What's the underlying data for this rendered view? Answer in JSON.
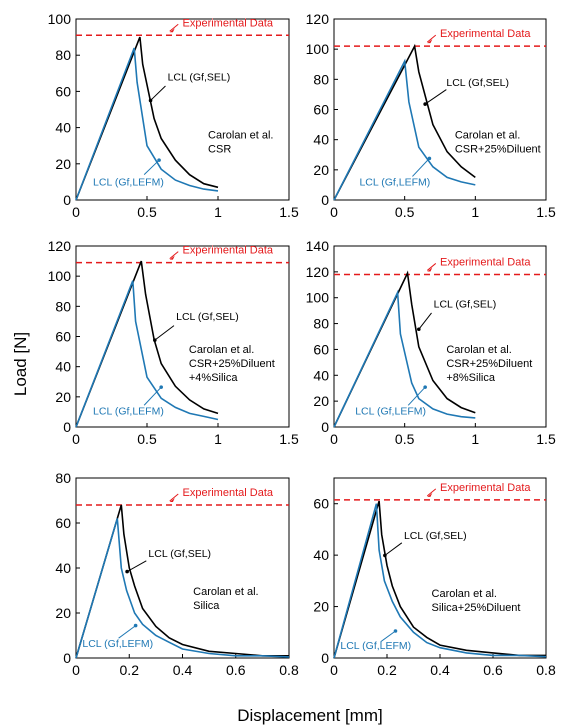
{
  "figure": {
    "ylabel": "Load [N]",
    "xlabel": "Displacement [mm]"
  },
  "colors": {
    "exp": "#e41a1c",
    "sel": "#000000",
    "lefm": "#1f78b4"
  },
  "chart_data": [
    {
      "type": "line",
      "xlim": [
        0,
        1.5
      ],
      "ylim": [
        0,
        100
      ],
      "xticks": [
        "0",
        "0.5",
        "1",
        "1.5"
      ],
      "yticks": [
        "0",
        "20",
        "40",
        "60",
        "80",
        "100"
      ],
      "experimental": {
        "label": "Experimental Data",
        "value": 91
      },
      "annotation": [
        "Carolan et al.",
        "CSR"
      ],
      "sel_label": "LCL (Gf,SEL)",
      "lefm_label": "LCL (Gf,LEFM)",
      "series": [
        {
          "key": "sel",
          "x": [
            0,
            0.45,
            0.47,
            0.55,
            0.6,
            0.7,
            0.8,
            0.9,
            1.0
          ],
          "y": [
            0,
            90,
            75,
            45,
            34,
            22,
            14,
            9,
            7
          ]
        },
        {
          "key": "lefm",
          "x": [
            0,
            0.41,
            0.43,
            0.5,
            0.6,
            0.7,
            0.8,
            0.9,
            1.0
          ],
          "y": [
            0,
            84,
            65,
            30,
            17,
            11,
            8,
            6,
            5
          ]
        }
      ]
    },
    {
      "type": "line",
      "xlim": [
        0,
        1.5
      ],
      "ylim": [
        0,
        120
      ],
      "xticks": [
        "0",
        "0.5",
        "1",
        "1.5"
      ],
      "yticks": [
        "0",
        "20",
        "40",
        "60",
        "80",
        "100",
        "120"
      ],
      "experimental": {
        "label": "Experimental Data",
        "value": 102
      },
      "annotation": [
        "Carolan et al.",
        "CSR+25%Diluent"
      ],
      "sel_label": "LCL (Gf,SEL)",
      "lefm_label": "LCL (Gf,LEFM)",
      "series": [
        {
          "key": "sel",
          "x": [
            0,
            0.57,
            0.6,
            0.7,
            0.8,
            0.9,
            1.0
          ],
          "y": [
            0,
            102,
            85,
            50,
            32,
            22,
            15
          ]
        },
        {
          "key": "lefm",
          "x": [
            0,
            0.5,
            0.53,
            0.6,
            0.7,
            0.8,
            0.9,
            1.0
          ],
          "y": [
            0,
            92,
            65,
            35,
            22,
            15,
            12,
            10
          ]
        }
      ]
    },
    {
      "type": "line",
      "xlim": [
        0,
        1.5
      ],
      "ylim": [
        0,
        120
      ],
      "xticks": [
        "0",
        "0.5",
        "1",
        "1.5"
      ],
      "yticks": [
        "0",
        "20",
        "40",
        "60",
        "80",
        "100",
        "120"
      ],
      "experimental": {
        "label": "Experimental Data",
        "value": 109
      },
      "annotation": [
        "Carolan et al.",
        "CSR+25%Diluent",
        "+4%Silica"
      ],
      "sel_label": "LCL (Gf,SEL)",
      "lefm_label": "LCL (Gf,LEFM)",
      "series": [
        {
          "key": "sel",
          "x": [
            0,
            0.46,
            0.49,
            0.55,
            0.6,
            0.7,
            0.8,
            0.9,
            1.0
          ],
          "y": [
            0,
            110,
            88,
            58,
            42,
            27,
            18,
            12,
            9
          ]
        },
        {
          "key": "lefm",
          "x": [
            0,
            0.4,
            0.42,
            0.5,
            0.6,
            0.7,
            0.8,
            0.9,
            1.0
          ],
          "y": [
            0,
            97,
            70,
            33,
            19,
            13,
            9,
            7,
            5
          ]
        }
      ]
    },
    {
      "type": "line",
      "xlim": [
        0,
        1.5
      ],
      "ylim": [
        0,
        140
      ],
      "xticks": [
        "0",
        "0.5",
        "1",
        "1.5"
      ],
      "yticks": [
        "0",
        "20",
        "40",
        "60",
        "80",
        "100",
        "120",
        "140"
      ],
      "experimental": {
        "label": "Experimental Data",
        "value": 118
      },
      "annotation": [
        "Carolan et al.",
        "CSR+25%Diluent",
        "+8%Silica"
      ],
      "sel_label": "LCL (Gf,SEL)",
      "lefm_label": "LCL (Gf,LEFM)",
      "series": [
        {
          "key": "sel",
          "x": [
            0,
            0.52,
            0.55,
            0.6,
            0.7,
            0.8,
            0.9,
            1.0
          ],
          "y": [
            0,
            119,
            95,
            62,
            36,
            22,
            15,
            11
          ]
        },
        {
          "key": "lefm",
          "x": [
            0,
            0.45,
            0.47,
            0.55,
            0.6,
            0.7,
            0.8,
            0.9,
            1.0
          ],
          "y": [
            0,
            104,
            72,
            34,
            22,
            14,
            10,
            8,
            7
          ]
        }
      ]
    },
    {
      "type": "line",
      "xlim": [
        0,
        0.8
      ],
      "ylim": [
        0,
        80
      ],
      "xticks": [
        "0",
        "0.2",
        "0.4",
        "0.6",
        "0.8"
      ],
      "yticks": [
        "0",
        "20",
        "40",
        "60",
        "80"
      ],
      "experimental": {
        "label": "Experimental Data",
        "value": 68
      },
      "annotation": [
        "Carolan et al.",
        "Silica"
      ],
      "sel_label": "LCL (Gf,SEL)",
      "lefm_label": "LCL (Gf,LEFM)",
      "series": [
        {
          "key": "sel",
          "x": [
            0,
            0.17,
            0.18,
            0.2,
            0.22,
            0.25,
            0.3,
            0.35,
            0.4,
            0.5,
            0.6,
            0.7,
            0.8
          ],
          "y": [
            0,
            68,
            55,
            40,
            32,
            22,
            14,
            9,
            6,
            3,
            2,
            1,
            1
          ]
        },
        {
          "key": "lefm",
          "x": [
            0,
            0.155,
            0.17,
            0.19,
            0.22,
            0.25,
            0.3,
            0.35,
            0.4,
            0.5,
            0.6,
            0.7,
            0.8
          ],
          "y": [
            0,
            62,
            40,
            30,
            20,
            15,
            10,
            7,
            4,
            2,
            1,
            1,
            0.5
          ]
        }
      ]
    },
    {
      "type": "line",
      "xlim": [
        0,
        0.8
      ],
      "ylim": [
        0,
        70
      ],
      "xticks": [
        "0",
        "0.2",
        "0.4",
        "0.6",
        "0.8"
      ],
      "yticks": [
        "0",
        "20",
        "40",
        "60"
      ],
      "experimental": {
        "label": "Experimental Data",
        "value": 61.5
      },
      "annotation": [
        "Carolan et al.",
        "Silica+25%Diluent"
      ],
      "sel_label": "LCL (Gf,SEL)",
      "lefm_label": "LCL (Gf,LEFM)",
      "series": [
        {
          "key": "sel",
          "x": [
            0,
            0.17,
            0.18,
            0.2,
            0.22,
            0.25,
            0.3,
            0.35,
            0.4,
            0.5,
            0.6,
            0.7,
            0.8
          ],
          "y": [
            0,
            61,
            48,
            36,
            28,
            20,
            12,
            8,
            5,
            3,
            2,
            1,
            1
          ]
        },
        {
          "key": "lefm",
          "x": [
            0,
            0.16,
            0.17,
            0.19,
            0.22,
            0.25,
            0.3,
            0.35,
            0.4,
            0.5,
            0.6,
            0.7,
            0.8
          ],
          "y": [
            0,
            60,
            42,
            30,
            22,
            16,
            10,
            6,
            4,
            2,
            1,
            1,
            0.5
          ]
        }
      ]
    }
  ]
}
